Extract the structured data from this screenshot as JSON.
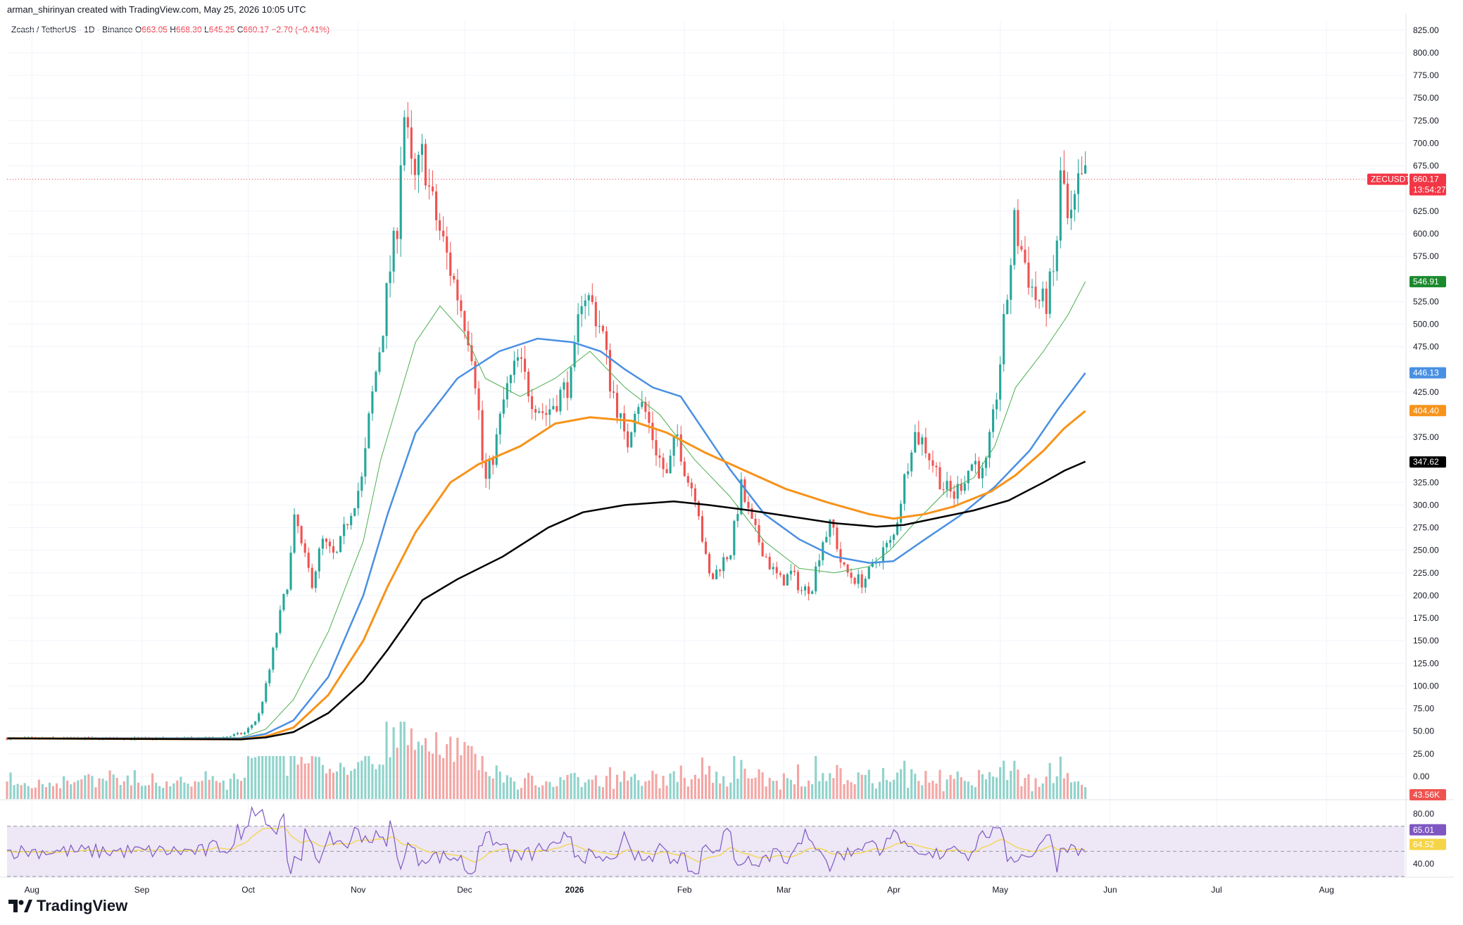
{
  "caption": "arman_shirinyan created with TradingView.com, May 25, 2026 10:05 UTC",
  "header": {
    "symbol": "Zcash / TetherUS · 1D · Binance",
    "open_label": "O",
    "open": "663.05",
    "high_label": "H",
    "high": "668.30",
    "low_label": "L",
    "low": "645.25",
    "close_label": "C",
    "close": "660.17",
    "change": "−2.70 (−0.41%)"
  },
  "colors": {
    "up": "#26a69a",
    "down": "#ef5350",
    "up_volume": "#8fd3cb",
    "down_volume": "#f3a6a4",
    "ma_green": "#4caf50",
    "ma_blue": "#4a90e2",
    "ma_orange": "#f7931a",
    "ma_black": "#000000",
    "rsi_line": "#7e57c2",
    "rsi_ma": "#f5d547",
    "rsi_band": "#ede7f6",
    "price_line": "#f23645"
  },
  "chart_data": [
    {
      "type": "candlestick",
      "symbol_tag": "ZECUSDT",
      "price_axis": {
        "ticks": [
          "825.00",
          "800.00",
          "775.00",
          "750.00",
          "725.00",
          "700.00",
          "675.00",
          "625.00",
          "600.00",
          "575.00",
          "525.00",
          "500.00",
          "475.00",
          "425.00",
          "375.00",
          "325.00",
          "300.00",
          "275.00",
          "250.00",
          "225.00",
          "200.00",
          "175.00",
          "150.00",
          "125.00",
          "100.00",
          "75.00",
          "50.00",
          "25.00",
          "0.00"
        ],
        "range": [
          -25,
          835
        ]
      },
      "time_axis": {
        "labels": [
          "Aug",
          "Sep",
          "Oct",
          "Nov",
          "Dec",
          "2026",
          "Feb",
          "Mar",
          "Apr",
          "May",
          "Jun",
          "Jul",
          "Aug"
        ],
        "label_days": [
          0,
          31,
          61,
          92,
          122,
          153,
          184,
          212,
          243,
          273,
          304,
          334,
          365
        ],
        "visible_days": [
          -7,
          387
        ],
        "start_date": "2025-08-01"
      },
      "last_price": "660.17",
      "countdown": "13:54:27",
      "moving_averages": [
        {
          "color_key": "ma_green",
          "last": "546.91",
          "points": [
            [
              -7,
              42
            ],
            [
              60,
              43
            ],
            [
              67,
              52
            ],
            [
              75,
              85
            ],
            [
              85,
              160
            ],
            [
              95,
              260
            ],
            [
              100,
              350
            ],
            [
              110,
              480
            ],
            [
              117,
              520
            ],
            [
              124,
              490
            ],
            [
              130,
              440
            ],
            [
              140,
              420
            ],
            [
              150,
              440
            ],
            [
              160,
              470
            ],
            [
              170,
              430
            ],
            [
              180,
              400
            ],
            [
              190,
              350
            ],
            [
              200,
              310
            ],
            [
              210,
              260
            ],
            [
              220,
              230
            ],
            [
              230,
              225
            ],
            [
              240,
              232
            ],
            [
              246,
              250
            ],
            [
              253,
              280
            ],
            [
              262,
              315
            ],
            [
              270,
              330
            ],
            [
              276,
              365
            ],
            [
              282,
              430
            ],
            [
              290,
              470
            ],
            [
              297,
              510
            ],
            [
              302,
              547
            ]
          ]
        },
        {
          "color_key": "ma_blue",
          "last": "446.13",
          "points": [
            [
              -7,
              42
            ],
            [
              60,
              42
            ],
            [
              67,
              47
            ],
            [
              75,
              62
            ],
            [
              85,
              110
            ],
            [
              95,
              200
            ],
            [
              102,
              290
            ],
            [
              110,
              380
            ],
            [
              122,
              440
            ],
            [
              134,
              470
            ],
            [
              145,
              484
            ],
            [
              155,
              480
            ],
            [
              163,
              470
            ],
            [
              170,
              450
            ],
            [
              178,
              430
            ],
            [
              186,
              420
            ],
            [
              193,
              380
            ],
            [
              200,
              340
            ],
            [
              210,
              290
            ],
            [
              220,
              262
            ],
            [
              230,
              243
            ],
            [
              240,
              236
            ],
            [
              247,
              238
            ],
            [
              256,
              262
            ],
            [
              266,
              288
            ],
            [
              276,
              320
            ],
            [
              286,
              360
            ],
            [
              294,
              405
            ],
            [
              302,
              446
            ]
          ]
        },
        {
          "color_key": "ma_orange",
          "last": "404.40",
          "points": [
            [
              -7,
              42
            ],
            [
              60,
              41
            ],
            [
              67,
              44
            ],
            [
              75,
              54
            ],
            [
              85,
              90
            ],
            [
              95,
              150
            ],
            [
              102,
              210
            ],
            [
              110,
              270
            ],
            [
              120,
              325
            ],
            [
              128,
              345
            ],
            [
              140,
              365
            ],
            [
              150,
              390
            ],
            [
              160,
              397
            ],
            [
              172,
              393
            ],
            [
              182,
              380
            ],
            [
              193,
              358
            ],
            [
              205,
              337
            ],
            [
              216,
              318
            ],
            [
              228,
              303
            ],
            [
              240,
              290
            ],
            [
              247,
              285
            ],
            [
              256,
              290
            ],
            [
              264,
              298
            ],
            [
              275,
              315
            ],
            [
              282,
              333
            ],
            [
              290,
              360
            ],
            [
              296,
              385
            ],
            [
              302,
              404
            ]
          ]
        },
        {
          "color_key": "ma_black",
          "last": "347.62",
          "points": [
            [
              -7,
              42
            ],
            [
              60,
              41
            ],
            [
              67,
              43
            ],
            [
              75,
              49
            ],
            [
              85,
              70
            ],
            [
              95,
              105
            ],
            [
              102,
              140
            ],
            [
              112,
              195
            ],
            [
              122,
              218
            ],
            [
              135,
              243
            ],
            [
              148,
              275
            ],
            [
              158,
              292
            ],
            [
              170,
              300
            ],
            [
              184,
              304
            ],
            [
              194,
              300
            ],
            [
              206,
              294
            ],
            [
              218,
              287
            ],
            [
              230,
              280
            ],
            [
              242,
              276
            ],
            [
              250,
              278
            ],
            [
              260,
              286
            ],
            [
              270,
              294
            ],
            [
              280,
              305
            ],
            [
              290,
              325
            ],
            [
              296,
              338
            ],
            [
              302,
              348
            ]
          ]
        }
      ],
      "candles_sample": [
        {
          "date": "2025-11-10",
          "high": 750
        },
        {
          "date": "2026-05-20",
          "high": 690
        },
        {
          "date": "2026-05-25",
          "open": 663.05,
          "high": 668.3,
          "low": 645.25,
          "close": 660.17
        }
      ]
    },
    {
      "type": "bar",
      "name": "Volume",
      "last": "43.56K"
    },
    {
      "type": "line",
      "name": "RSI",
      "axis_ticks": [
        "80.00",
        "40.00"
      ],
      "range": [
        30,
        90
      ],
      "bands": [
        70,
        50,
        30
      ],
      "rsi_last": "65.01",
      "rsi_ma_last": "64.52"
    }
  ],
  "branding": {
    "logo_text": "TradingView"
  }
}
